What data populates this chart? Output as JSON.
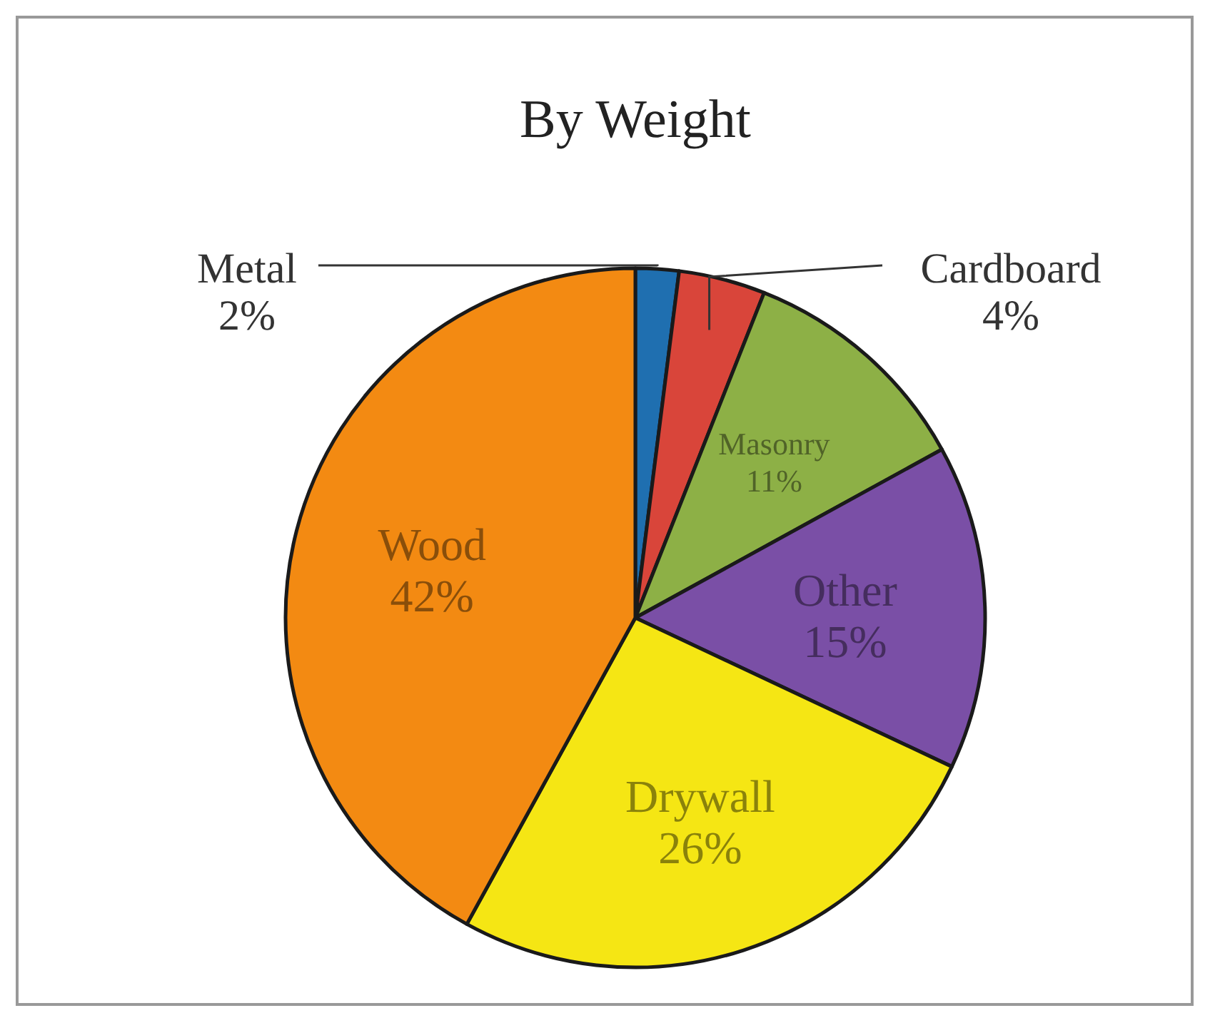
{
  "chart_data": {
    "type": "pie",
    "title": "By Weight",
    "categories": [
      "Metal",
      "Cardboard",
      "Masonry",
      "Other",
      "Drywall",
      "Wood"
    ],
    "values": [
      2,
      4,
      11,
      15,
      26,
      42
    ],
    "colors": [
      "#1f6fb0",
      "#d9453a",
      "#8db046",
      "#7a4fa6",
      "#f5e614",
      "#f38a12"
    ],
    "value_labels": [
      "2%",
      "4%",
      "11%",
      "15%",
      "26%",
      "42%"
    ]
  }
}
